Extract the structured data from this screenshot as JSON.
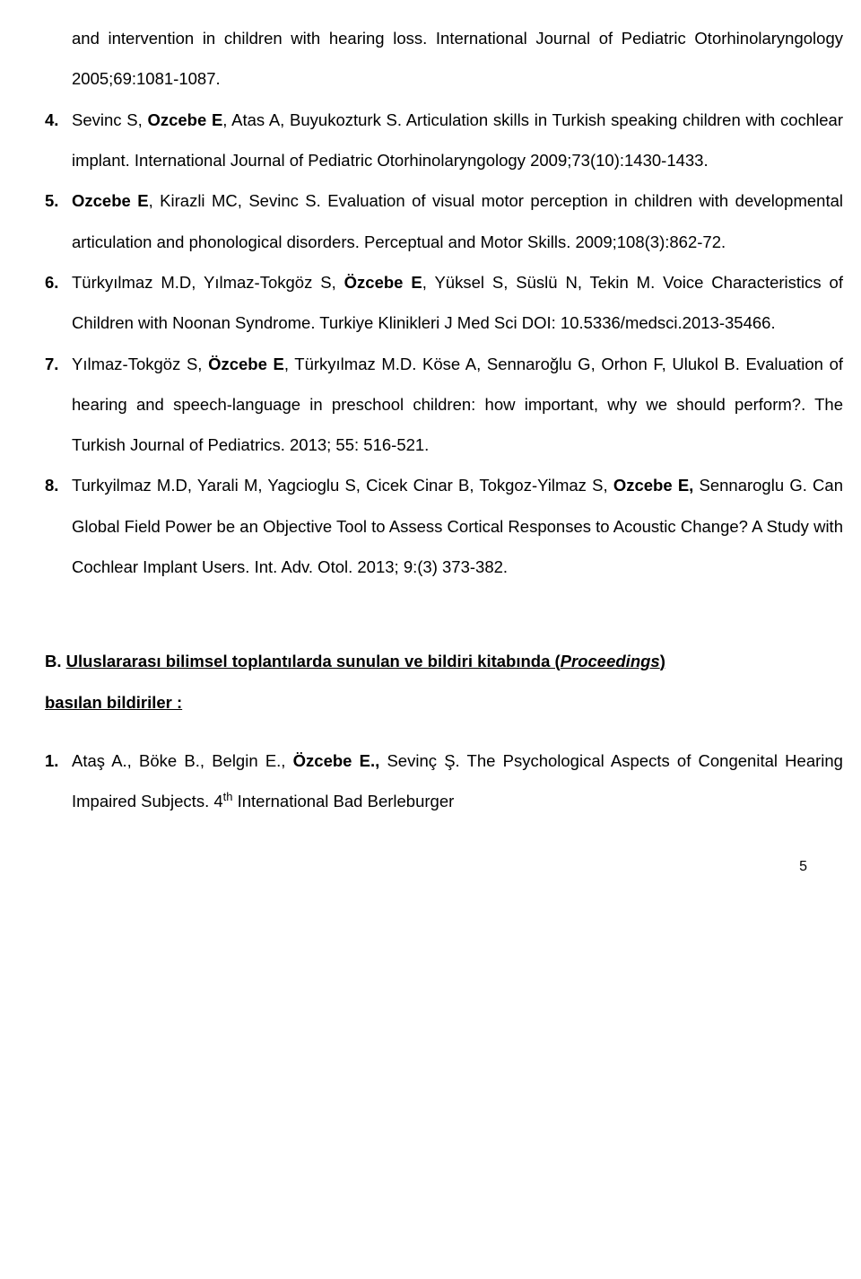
{
  "continuation": "and intervention in children with hearing loss. International Journal of Pediatric Otorhinolaryngology 2005;69:1081-1087.",
  "refs": [
    {
      "num": "4.",
      "authors_pre": "Sevinc S, ",
      "authors_bold": "Ozcebe E",
      "authors_post": ", Atas A, Buyukozturk S.",
      "rest": " Articulation skills in Turkish speaking children with cochlear implant. International Journal of Pediatric Otorhinolaryngology 2009;73(10):1430-1433."
    },
    {
      "num": "5.",
      "authors_bold": "Ozcebe E",
      "authors_post": ", Kirazli MC, Sevinc S.",
      "rest": " Evaluation of visual motor perception in children with developmental articulation and phonological disorders. Perceptual and  Motor Skills. 2009;108(3):862-72."
    },
    {
      "num": "6.",
      "authors_pre": "Türkyılmaz M.D, Yılmaz-Tokgöz S, ",
      "authors_bold": "Özcebe E",
      "authors_post": ", Yüksel S, Süslü N, Tekin M.",
      "rest": " Voice Characteristics of Children with Noonan Syndrome. Turkiye Klinikleri J Med Sci DOI: 10.5336/medsci.2013-35466."
    },
    {
      "num": "7.",
      "authors_pre": "Yılmaz-Tokgöz S,  ",
      "authors_bold": "Özcebe E",
      "authors_post": ", Türkyılmaz M.D.  Köse A, Sennaroğlu G, Orhon F, Ulukol B.",
      "rest": " Evaluation of hearing and speech-language in preschool children: how important, why we should perform?. The Turkish Journal of Pediatrics. 2013; 55: 516-521."
    },
    {
      "num": "8.",
      "authors_pre": "Turkyilmaz M.D, Yarali M, Yagcioglu S, Cicek Cinar B, Tokgoz-Yilmaz S, ",
      "authors_bold": "Ozcebe E,",
      "authors_post": " Sennaroglu G.",
      "rest": " Can Global Field Power be an Objective Tool to Assess Cortical Responses to Acoustic Change? A Study with Cochlear Implant Users. Int. Adv. Otol. 2013; 9:(3) 373-382."
    }
  ],
  "sectionB": {
    "prefix": "B. ",
    "title_underlined": "Uluslararası bilimsel toplantılarda sunulan ve bildiri kitabında (",
    "title_italic": "Proceedings",
    "title_after": ")",
    "title_line2": "basılan bildiriler :"
  },
  "refB1": {
    "num": "1.",
    "authors_pre": "Ataş A., Böke B., Belgin E., ",
    "authors_bold": "Özcebe E.,",
    "authors_post": " Sevinç Ş.",
    "rest_pre": " The Psychological Aspects of Congenital Hearing Impaired Subjects. 4",
    "sup": "th",
    "rest_post": " International Bad Berleburger"
  },
  "pagenum": "5"
}
